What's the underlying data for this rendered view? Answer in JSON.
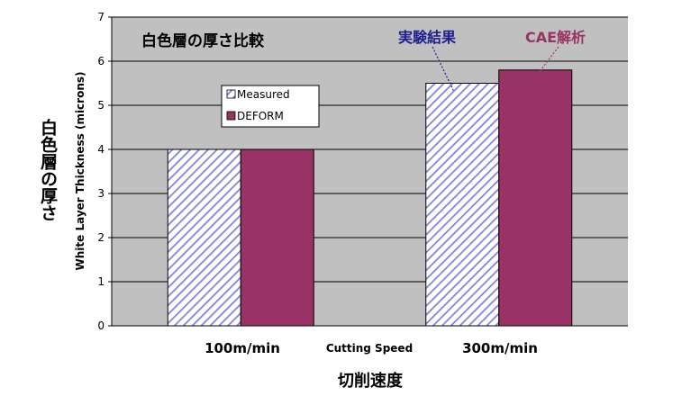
{
  "chart_data": {
    "type": "bar",
    "title": "白色層の厚さ比較",
    "categories": [
      "100m/min",
      "300m/min"
    ],
    "series": [
      {
        "name": "Measured",
        "values": [
          4.0,
          5.5
        ],
        "fill": "hatch",
        "color": "#8080e0"
      },
      {
        "name": "DEFORM",
        "values": [
          4.0,
          5.8
        ],
        "color": "#993366"
      }
    ],
    "xlabel": "Cutting Speed",
    "ylabel": "White Layer Thickness (microns)",
    "ylim": [
      0,
      7
    ],
    "yticks": [
      "0",
      "1",
      "2",
      "3",
      "4",
      "5",
      "6",
      "7"
    ],
    "grid": true,
    "plot_background": "#c0c0c0",
    "legend_position": "left",
    "annotations": [
      {
        "text": "実験結果",
        "target_series": 0,
        "target_category": 1,
        "color": "#1f1f8f"
      },
      {
        "text": "CAE解析",
        "target_series": 1,
        "target_category": 1,
        "color": "#993366"
      }
    ],
    "ylabel_ja": "白色層の厚さ",
    "xlabel_ja": "切削速度"
  }
}
